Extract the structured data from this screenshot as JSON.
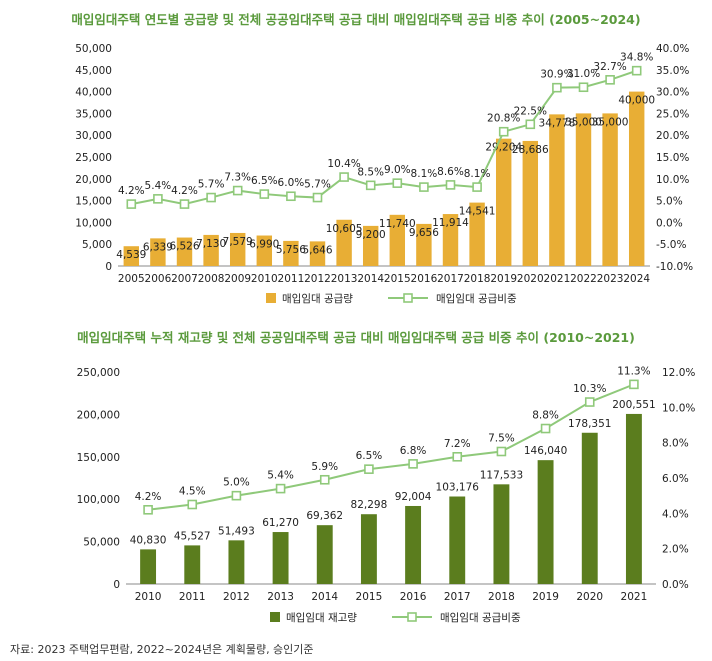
{
  "colors": {
    "title": "#5a9a3c",
    "bar1": "#e8ae35",
    "line": "#8fc97a",
    "bar2": "#5b7d1e",
    "grid": "#dddddd"
  },
  "chart_data": [
    {
      "type": "bar",
      "title": "매입임대주택 연도별 공급량 및 전체 공공임대주택 공급 대비 매입임대주택 공급 비중 추이 (2005~2024)",
      "categories": [
        "2005",
        "2006",
        "2007",
        "2008",
        "2009",
        "2010",
        "2011",
        "2012",
        "2013",
        "2014",
        "2015",
        "2016",
        "2017",
        "2018",
        "2019",
        "2020",
        "2021",
        "2022",
        "2023",
        "2024"
      ],
      "series": [
        {
          "name": "매입임대 공급량",
          "kind": "bar",
          "axis": "left",
          "values": [
            4539,
            6339,
            6526,
            7130,
            7579,
            6990,
            5756,
            5646,
            10605,
            9200,
            11740,
            9656,
            11914,
            14541,
            29204,
            28686,
            34778,
            35000,
            35000,
            40000
          ],
          "labels": [
            "4,539",
            "6,339",
            "6,526",
            "7,130",
            "7,579",
            "6,990",
            "5,756",
            "5,646",
            "10,605",
            "9,200",
            "11,740",
            "9,656",
            "11,914",
            "14,541",
            "29,204",
            "28,686",
            "34,778",
            "35,000",
            "35,000",
            "40,000"
          ]
        },
        {
          "name": "매입임대 공급비중",
          "kind": "line",
          "axis": "right",
          "values": [
            4.2,
            5.4,
            4.2,
            5.7,
            7.3,
            6.5,
            6.0,
            5.7,
            10.4,
            8.5,
            9.0,
            8.1,
            8.6,
            8.1,
            20.8,
            22.5,
            30.9,
            31.0,
            32.7,
            34.8
          ],
          "labels": [
            "4.2%",
            "5.4%",
            "4.2%",
            "5.7%",
            "7.3%",
            "6.5%",
            "6.0%",
            "5.7%",
            "10.4%",
            "8.5%",
            "9.0%",
            "8.1%",
            "8.6%",
            "8.1%",
            "20.8%",
            "22.5%",
            "30.9%",
            "31.0%",
            "32.7%",
            "34.8%"
          ]
        }
      ],
      "ylim_left": [
        0,
        50000
      ],
      "yticks_left": [
        "0",
        "5,000",
        "10,000",
        "15,000",
        "20,000",
        "25,000",
        "30,000",
        "35,000",
        "40,000",
        "45,000",
        "50,000"
      ],
      "ylim_right": [
        -10,
        40
      ],
      "yticks_right": [
        "-10.0%",
        "-5.0%",
        "0.0%",
        "5.0%",
        "10.0%",
        "15.0%",
        "20.0%",
        "25.0%",
        "30.0%",
        "35.0%",
        "40.0%"
      ],
      "legend": [
        "매입임대 공급량",
        "매입임대 공급비중"
      ],
      "legend_position": "bottom"
    },
    {
      "type": "bar",
      "title": "매입임대주택 누적 재고량 및 전체 공공임대주택 공급 대비 매입임대주택 공급 비중 추이 (2010~2021)",
      "categories": [
        "2010",
        "2011",
        "2012",
        "2013",
        "2014",
        "2015",
        "2016",
        "2017",
        "2018",
        "2019",
        "2020",
        "2021"
      ],
      "series": [
        {
          "name": "매입임대 재고량",
          "kind": "bar",
          "axis": "left",
          "values": [
            40830,
            45527,
            51493,
            61270,
            69362,
            82298,
            92004,
            103176,
            117533,
            146040,
            178351,
            200551
          ],
          "labels": [
            "40,830",
            "45,527",
            "51,493",
            "61,270",
            "69,362",
            "82,298",
            "92,004",
            "103,176",
            "117,533",
            "146,040",
            "178,351",
            "200,551"
          ]
        },
        {
          "name": "매입임대 공급비중",
          "kind": "line",
          "axis": "right",
          "values": [
            4.2,
            4.5,
            5.0,
            5.4,
            5.9,
            6.5,
            6.8,
            7.2,
            7.5,
            8.8,
            10.3,
            11.3
          ],
          "labels": [
            "4.2%",
            "4.5%",
            "5.0%",
            "5.4%",
            "5.9%",
            "6.5%",
            "6.8%",
            "7.2%",
            "7.5%",
            "8.8%",
            "10.3%",
            "11.3%"
          ]
        }
      ],
      "ylim_left": [
        0,
        250000
      ],
      "yticks_left": [
        "0",
        "50,000",
        "100,000",
        "150,000",
        "200,000",
        "250,000"
      ],
      "ylim_right": [
        0,
        12
      ],
      "yticks_right": [
        "0.0%",
        "2.0%",
        "4.0%",
        "6.0%",
        "8.0%",
        "10.0%",
        "12.0%"
      ],
      "legend": [
        "매입임대 재고량",
        "매입임대 공급비중"
      ],
      "legend_position": "bottom"
    }
  ],
  "source_note": "자료: 2023 주택업무편람, 2022~2024년은 계획물량, 승인기준"
}
